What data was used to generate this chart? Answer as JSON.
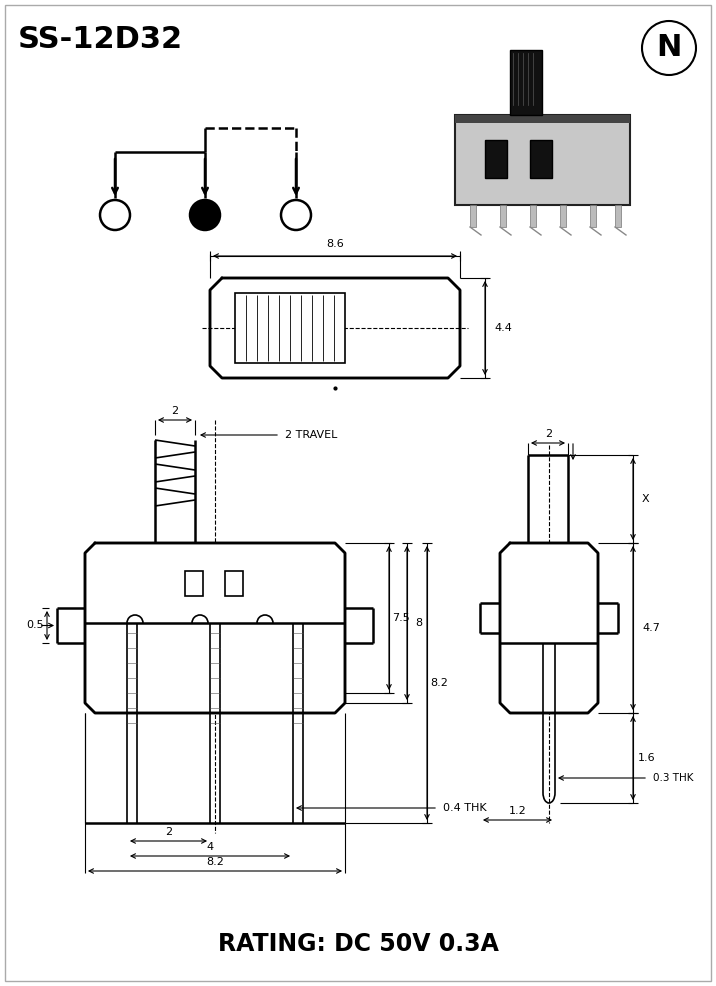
{
  "title": "SS-12D32",
  "rating": "RATING: DC 50V 0.3A",
  "bg_color": "#ffffff",
  "lc": "#000000",
  "dim_8_6": "8.6",
  "dim_4_4": "4.4",
  "dim_2_top": "2",
  "dim_2_travel": "2 TRAVEL",
  "dim_7_5": "7.5",
  "dim_8": "8",
  "dim_8_2": "8.2",
  "dim_0_5": "0.5",
  "dim_0_4thk": "0.4 THK",
  "dim_2_bot": "2",
  "dim_4": "4",
  "dim_8_2b": "8.2",
  "dim_2_side": "2",
  "dim_x": "X",
  "dim_4_7": "4.7",
  "dim_1_6": "1.6",
  "dim_0_3thk": "0.3 THK",
  "dim_1_2": "1.2"
}
